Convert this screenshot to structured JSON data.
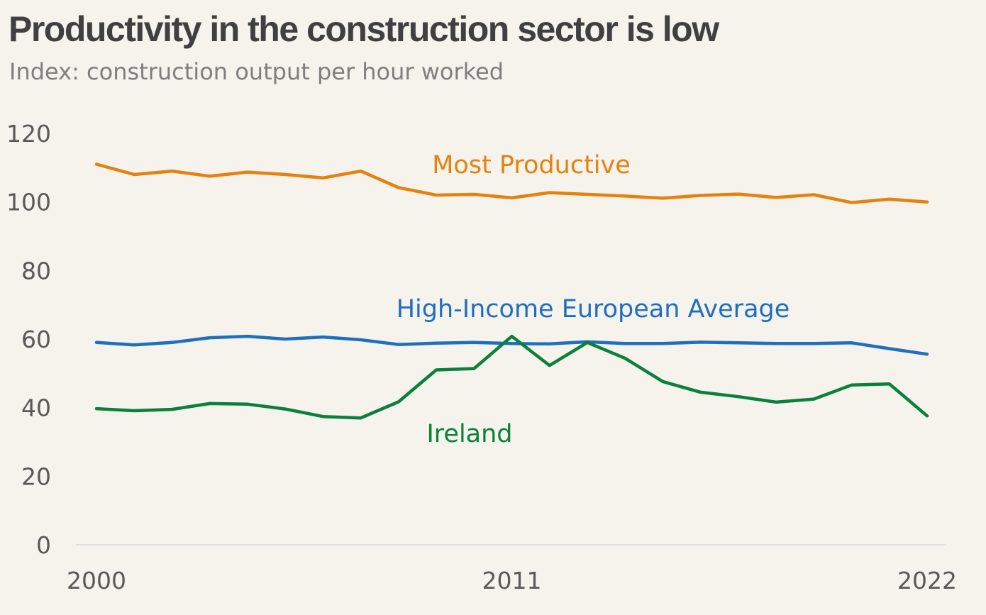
{
  "chart_data": {
    "type": "line",
    "title": "Productivity in the construction sector is low",
    "subtitle": "Index: construction output per hour worked",
    "xlabel": "",
    "ylabel": "",
    "x": [
      2000,
      2001,
      2002,
      2003,
      2004,
      2005,
      2006,
      2007,
      2008,
      2009,
      2010,
      2011,
      2012,
      2013,
      2014,
      2015,
      2016,
      2017,
      2018,
      2019,
      2020,
      2021,
      2022
    ],
    "x_tick_labels": [
      "2000",
      "2011",
      "2022"
    ],
    "y_ticks": [
      0,
      20,
      40,
      60,
      80,
      100,
      120
    ],
    "ylim": [
      0,
      120
    ],
    "grid": false,
    "legend": "inline labels",
    "series": [
      {
        "name": "Most Productive",
        "color": "#e5820f",
        "values": [
          111,
          108,
          109,
          107.5,
          108.7,
          108,
          107,
          109,
          104.2,
          102,
          102.2,
          101.2,
          102.7,
          102.2,
          101.7,
          101.1,
          101.9,
          102.3,
          101.3,
          102.1,
          99.8,
          100.8,
          100
        ]
      },
      {
        "name": "High-Income European Average",
        "color": "#1f6fc0",
        "values": [
          59,
          58.3,
          59,
          60.4,
          60.8,
          60,
          60.6,
          59.8,
          58.4,
          58.8,
          59,
          58.7,
          58.6,
          59.2,
          58.7,
          58.7,
          59.1,
          58.9,
          58.7,
          58.7,
          58.9,
          57.2,
          55.6
        ]
      },
      {
        "name": "Ireland",
        "color": "#0a803c",
        "values": [
          39.7,
          39.1,
          39.5,
          41.2,
          41,
          39.6,
          37.4,
          37,
          41.7,
          51,
          51.4,
          60.8,
          52.3,
          59,
          54.4,
          47.6,
          44.5,
          43.2,
          41.6,
          42.5,
          46.6,
          46.9,
          37.6
        ]
      }
    ]
  }
}
